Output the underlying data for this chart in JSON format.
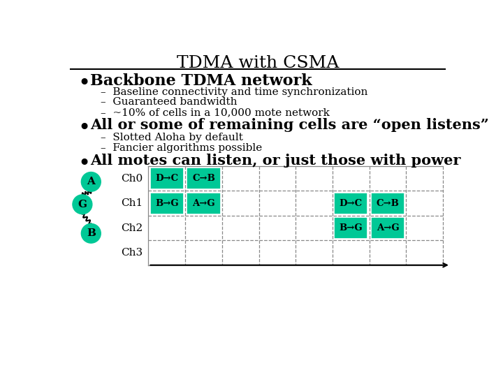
{
  "title": "TDMA with CSMA",
  "background_color": "#ffffff",
  "title_fontsize": 18,
  "bullet1": "Backbone TDMA network",
  "sub1a": "Baseline connectivity and time synchronization",
  "sub1b": "Guaranteed bandwidth",
  "sub1c": "~10% of cells in a 10,000 mote network",
  "bullet2": "All or some of remaining cells are “open listens”",
  "sub2a": "Slotted Aloha by default",
  "sub2b": "Fancier algorithms possible",
  "bullet3": "All motes can listen, or just those with power",
  "teal_color": "#00c896",
  "grid_color": "#888888",
  "node_color": "#00c896",
  "channels": [
    "Ch0",
    "Ch1",
    "Ch2",
    "Ch3"
  ],
  "cells": [
    {
      "ch": 0,
      "slot": 0,
      "label": "D→C"
    },
    {
      "ch": 0,
      "slot": 1,
      "label": "C→B"
    },
    {
      "ch": 1,
      "slot": 0,
      "label": "B→G"
    },
    {
      "ch": 1,
      "slot": 1,
      "label": "A→G"
    },
    {
      "ch": 1,
      "slot": 5,
      "label": "D→C"
    },
    {
      "ch": 1,
      "slot": 6,
      "label": "C→B"
    },
    {
      "ch": 2,
      "slot": 5,
      "label": "B→G"
    },
    {
      "ch": 2,
      "slot": 6,
      "label": "A→G"
    }
  ],
  "num_slots": 8,
  "num_channels": 4
}
